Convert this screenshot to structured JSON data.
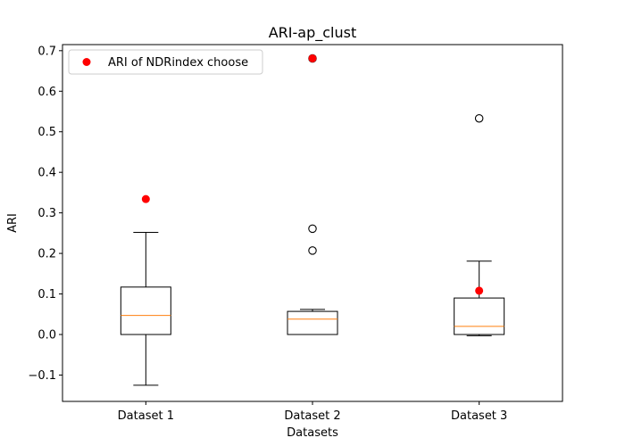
{
  "chart_data": {
    "type": "box",
    "title": "ARI-ap_clust",
    "xlabel": "Datasets",
    "ylabel": "ARI",
    "ylim": [
      -0.165,
      0.715
    ],
    "yticks": [
      -0.1,
      0.0,
      0.1,
      0.2,
      0.3,
      0.4,
      0.5,
      0.6,
      0.7
    ],
    "ytick_labels": [
      "−0.1",
      "0.0",
      "0.1",
      "0.2",
      "0.3",
      "0.4",
      "0.5",
      "0.6",
      "0.7"
    ],
    "categories": [
      "Dataset 1",
      "Dataset 2",
      "Dataset 3"
    ],
    "boxes": [
      {
        "whisker_low": -0.125,
        "q1": 0.0,
        "median": 0.047,
        "q3": 0.117,
        "whisker_high": 0.252,
        "outliers": []
      },
      {
        "whisker_low": 0.0,
        "q1": 0.0,
        "median": 0.038,
        "q3": 0.057,
        "whisker_high": 0.062,
        "outliers": [
          0.207,
          0.261,
          0.681
        ]
      },
      {
        "whisker_low": -0.003,
        "q1": 0.0,
        "median": 0.02,
        "q3": 0.09,
        "whisker_high": 0.181,
        "outliers": [
          0.533
        ]
      }
    ],
    "highlight_series": {
      "name": "ARI of NDRindex choose",
      "color": "#ff0000",
      "values": [
        0.334,
        0.681,
        0.108
      ]
    },
    "grid": false,
    "legend": "top-left",
    "colors": {
      "box": "#000000",
      "median": "#ff7f0e",
      "highlight": "#ff0000"
    }
  }
}
